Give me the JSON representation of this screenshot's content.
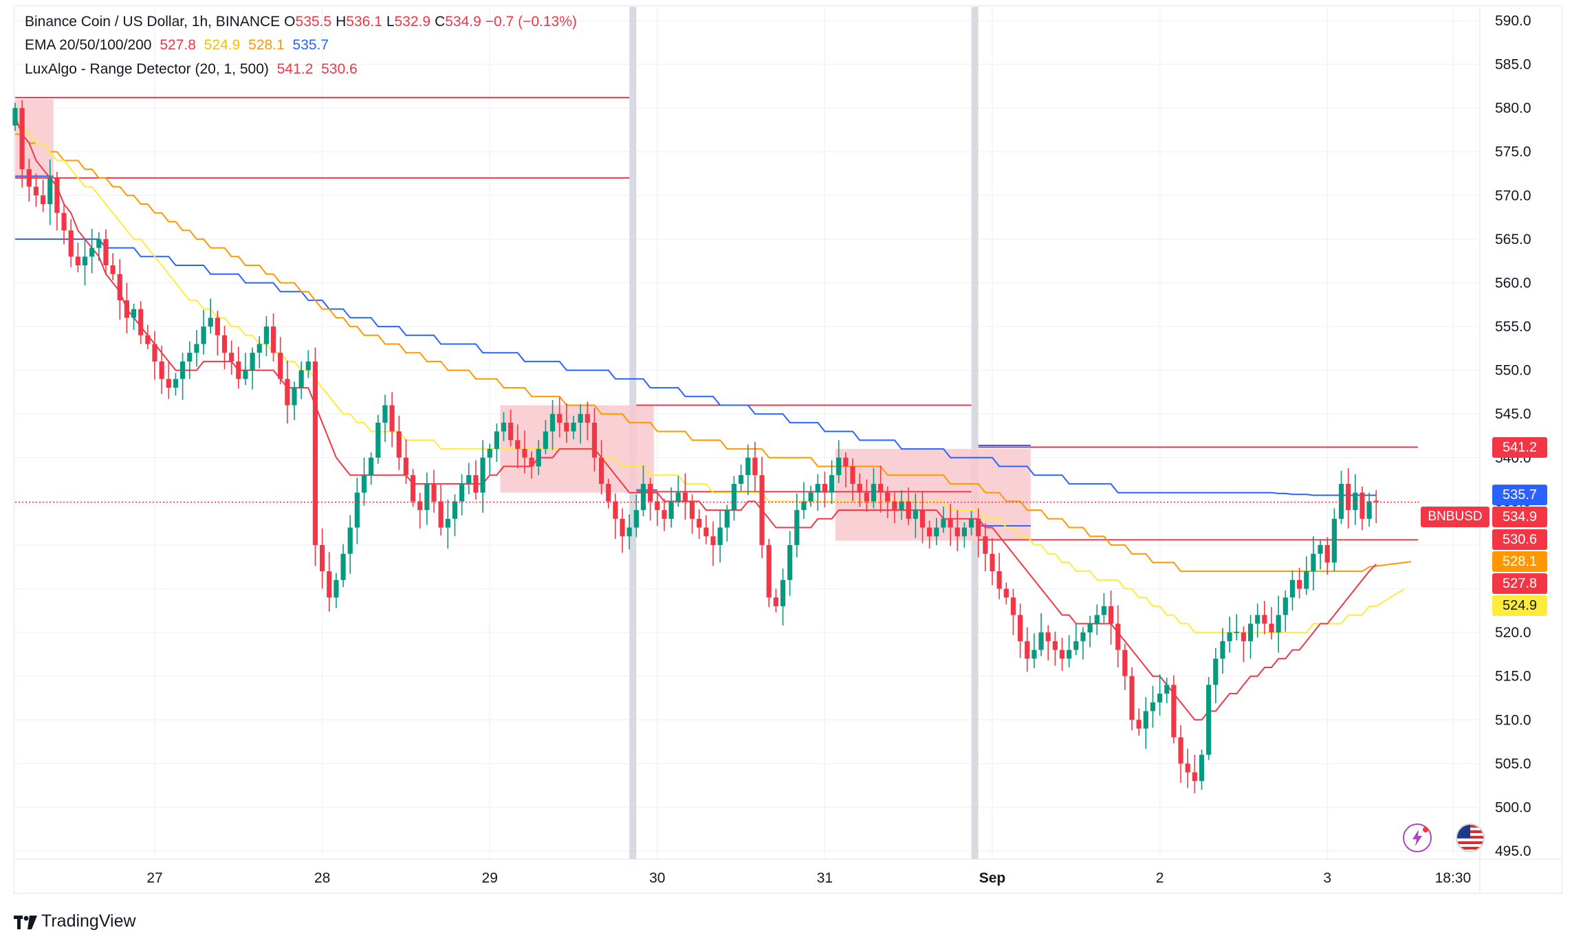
{
  "legend": {
    "line1": {
      "symbol": "Binance Coin / US Dollar, 1h, BINANCE",
      "o_label": "O",
      "o": "535.5",
      "h_label": "H",
      "h": "536.1",
      "l_label": "L",
      "l": "532.9",
      "c_label": "C",
      "c": "534.9",
      "change": "−0.7 (−0.13%)"
    },
    "line2": {
      "name": "EMA 20/50/100/200",
      "v20": "527.8",
      "v50": "524.9",
      "v100": "528.1",
      "v200": "535.7"
    },
    "line3": {
      "name": "LuxAlgo - Range Detector (20, 1, 500)",
      "upper": "541.2",
      "lower": "530.6"
    }
  },
  "price_tags": {
    "range_upper": "541.2",
    "ema200": "535.7",
    "symbol": "BNBUSD",
    "last": "534.9",
    "range_lower": "530.6",
    "ema100": "528.1",
    "ema20": "527.8",
    "ema50": "524.9"
  },
  "colors": {
    "up": "#089981",
    "down": "#f23645",
    "ema20": "#f23645",
    "ema50": "#ffeb3b",
    "ema100": "#ff9800",
    "ema200": "#2962ff",
    "range_fill": "#f8c8cc"
  },
  "branding": {
    "logo_text": "TradingView"
  },
  "icons": [
    "lightning-icon",
    "us-flag-icon"
  ],
  "chart_data": {
    "type": "candlestick",
    "ylim": [
      495,
      590
    ],
    "y_ticks": [
      590,
      585,
      580,
      575,
      570,
      565,
      560,
      555,
      550,
      545,
      540,
      535,
      530,
      525,
      520,
      515,
      510,
      505,
      500,
      495
    ],
    "x_ticks": [
      {
        "label": "27",
        "bar": 20
      },
      {
        "label": "28",
        "bar": 44
      },
      {
        "label": "29",
        "bar": 68
      },
      {
        "label": "30",
        "bar": 92
      },
      {
        "label": "31",
        "bar": 116
      },
      {
        "label": "Sep",
        "bar": 140
      },
      {
        "label": "2",
        "bar": 164
      },
      {
        "label": "3",
        "bar": 188
      },
      {
        "label": "18:30",
        "bar": 206
      }
    ],
    "session_breaks": [
      88.5,
      137.5
    ],
    "last_price": 534.9,
    "closes": [
      580,
      573,
      571,
      570,
      569,
      572,
      568,
      566,
      563,
      562,
      563,
      564,
      565,
      562,
      561,
      558,
      556,
      557,
      554,
      553,
      551,
      549,
      548,
      549,
      551,
      552,
      553,
      555,
      556,
      554,
      552,
      551,
      549,
      550,
      552,
      553,
      555,
      552,
      549,
      546,
      548,
      550,
      551,
      530,
      527,
      524,
      526,
      529,
      532,
      536,
      538,
      540,
      544,
      546,
      543,
      540,
      538,
      535,
      534,
      537,
      535,
      532,
      533,
      535,
      537,
      538,
      536,
      540,
      541,
      543,
      544,
      542,
      541,
      540,
      539,
      541,
      543,
      545,
      544,
      543,
      544,
      545,
      544,
      540,
      537,
      535,
      533,
      531,
      532,
      534,
      537,
      535,
      534,
      533,
      535,
      536,
      535,
      533,
      532,
      531,
      530,
      532,
      534,
      537,
      538,
      540,
      538,
      530,
      524,
      523,
      526,
      530,
      534,
      535,
      536,
      537,
      536,
      538,
      540,
      539,
      537,
      536,
      535,
      537,
      536,
      535,
      534,
      535,
      533,
      534,
      532,
      531,
      532,
      533,
      532,
      531,
      532,
      533,
      531,
      529,
      527,
      525,
      524,
      522,
      519,
      517,
      518,
      520,
      519,
      518,
      517,
      518,
      519,
      520,
      521,
      522,
      523,
      521,
      518,
      515,
      510,
      509,
      511,
      512,
      513,
      514,
      508,
      505,
      504,
      503,
      506,
      514,
      517,
      519,
      520,
      520,
      519,
      521,
      522,
      521,
      520,
      522,
      524,
      526,
      525,
      527,
      529,
      530,
      528,
      533,
      537,
      534,
      536,
      533,
      535,
      534.9
    ],
    "ema20": [
      579,
      577,
      576,
      574,
      573,
      572,
      571,
      569,
      568,
      566,
      565,
      564,
      563,
      561,
      560,
      559,
      557,
      556,
      555,
      554,
      553,
      552,
      551,
      550,
      550,
      550,
      550,
      551,
      551,
      551,
      551,
      551,
      550,
      550,
      550,
      550,
      550,
      550,
      549,
      548,
      548,
      548,
      548,
      546,
      544,
      542,
      540,
      539,
      538,
      538,
      538,
      538,
      538,
      538,
      538,
      538,
      538,
      537,
      537,
      537,
      537,
      537,
      537,
      537,
      537,
      537,
      537,
      537,
      538,
      538,
      539,
      539,
      539,
      539,
      539,
      540,
      540,
      540,
      541,
      541,
      541,
      541,
      541,
      541,
      540,
      539,
      538,
      537,
      536,
      536,
      536,
      536,
      536,
      535,
      535,
      535,
      535,
      535,
      535,
      534,
      534,
      534,
      534,
      534,
      534,
      535,
      535,
      534,
      533,
      532,
      532,
      532,
      532,
      532,
      532,
      533,
      533,
      533,
      534,
      534,
      534,
      534,
      534,
      534,
      534,
      534,
      534,
      534,
      534,
      534,
      534,
      534,
      534,
      533,
      533,
      533,
      533,
      533,
      533,
      532,
      532,
      531,
      530,
      529,
      528,
      527,
      526,
      525,
      524,
      523,
      522,
      522,
      521,
      521,
      521,
      521,
      521,
      521,
      520,
      519,
      518,
      517,
      516,
      515,
      515,
      514,
      513,
      512,
      511,
      510,
      510,
      511,
      511,
      512,
      513,
      513,
      514,
      515,
      515,
      516,
      516,
      517,
      517,
      518,
      518,
      519,
      520,
      521,
      521,
      522,
      523,
      524,
      525,
      526,
      527,
      527.8
    ],
    "ema50": [
      578,
      578,
      577,
      576,
      576,
      575,
      574,
      574,
      573,
      572,
      571,
      571,
      570,
      569,
      568,
      567,
      566,
      565,
      565,
      564,
      563,
      562,
      561,
      560,
      559,
      558,
      558,
      557,
      557,
      556,
      556,
      555,
      555,
      554,
      554,
      553,
      553,
      552,
      552,
      551,
      551,
      550,
      550,
      549,
      548,
      547,
      546,
      545,
      545,
      544,
      544,
      543,
      543,
      543,
      543,
      543,
      542,
      542,
      542,
      542,
      542,
      541,
      541,
      541,
      541,
      541,
      541,
      541,
      541,
      541,
      541,
      541,
      541,
      541,
      541,
      541,
      541,
      541,
      541,
      541,
      541,
      541,
      541,
      541,
      540,
      540,
      540,
      539,
      539,
      539,
      539,
      538,
      538,
      538,
      538,
      538,
      537,
      537,
      537,
      537,
      536,
      536,
      536,
      536,
      536,
      536,
      536,
      536,
      535,
      535,
      535,
      535,
      535,
      535,
      535,
      535,
      535,
      535,
      535,
      535,
      535,
      535,
      535,
      535,
      535,
      535,
      535,
      535,
      535,
      535,
      535,
      535,
      535,
      535,
      534,
      534,
      534,
      534,
      534,
      533,
      533,
      533,
      532,
      532,
      531,
      531,
      530,
      530,
      529,
      529,
      528,
      528,
      527,
      527,
      527,
      526,
      526,
      526,
      526,
      525,
      525,
      524,
      524,
      523,
      523,
      522,
      522,
      521,
      521,
      520,
      520,
      520,
      520,
      520,
      520,
      520,
      520,
      520,
      520,
      520,
      520,
      520,
      520,
      520,
      520,
      520,
      521,
      521,
      521,
      521,
      521,
      522,
      522,
      522,
      523,
      523,
      523.5,
      524,
      524.5,
      524.9
    ],
    "ema100": [
      577,
      577,
      576,
      576,
      576,
      575,
      575,
      574,
      574,
      574,
      573,
      573,
      572,
      572,
      571,
      571,
      570,
      570,
      569,
      569,
      568,
      568,
      567,
      567,
      566,
      566,
      565,
      565,
      564,
      564,
      564,
      563,
      563,
      562,
      562,
      562,
      561,
      561,
      560,
      560,
      560,
      559,
      559,
      558,
      557,
      557,
      556,
      556,
      555,
      555,
      554,
      554,
      554,
      553,
      553,
      553,
      552,
      552,
      552,
      551,
      551,
      551,
      550,
      550,
      550,
      550,
      549,
      549,
      549,
      549,
      548,
      548,
      548,
      548,
      547,
      547,
      547,
      547,
      547,
      546,
      546,
      546,
      546,
      546,
      545,
      545,
      545,
      545,
      544,
      544,
      544,
      544,
      543,
      543,
      543,
      543,
      543,
      542,
      542,
      542,
      542,
      542,
      541,
      541,
      541,
      541,
      541,
      541,
      540,
      540,
      540,
      540,
      540,
      540,
      540,
      539,
      539,
      539,
      539,
      539,
      539,
      539,
      539,
      539,
      539,
      538,
      538,
      538,
      538,
      538,
      538,
      538,
      538,
      538,
      537,
      537,
      537,
      537,
      537,
      536,
      536,
      536,
      535,
      535,
      535,
      534,
      534,
      534,
      533,
      533,
      533,
      532,
      532,
      532,
      531,
      531,
      531,
      530,
      530,
      530,
      529,
      529,
      529,
      528,
      528,
      528,
      528,
      527,
      527,
      527,
      527,
      527,
      527,
      527,
      527,
      527,
      527,
      527,
      527,
      527,
      527,
      527,
      527,
      527,
      527,
      527,
      527,
      527,
      527,
      527,
      527,
      527,
      527,
      527,
      527.5,
      527.6,
      527.7,
      527.8,
      527.9,
      528,
      528.1
    ],
    "ema200": [
      565,
      565,
      565,
      565,
      565,
      565,
      565,
      565,
      565,
      565,
      565,
      565,
      565,
      564,
      564,
      564,
      564,
      564,
      563,
      563,
      563,
      563,
      563,
      562,
      562,
      562,
      562,
      562,
      561,
      561,
      561,
      561,
      561,
      560,
      560,
      560,
      560,
      560,
      559,
      559,
      559,
      559,
      558,
      558,
      558,
      557,
      557,
      557,
      556,
      556,
      556,
      556,
      555,
      555,
      555,
      555,
      554,
      554,
      554,
      554,
      554,
      553,
      553,
      553,
      553,
      553,
      553,
      552,
      552,
      552,
      552,
      552,
      552,
      551,
      551,
      551,
      551,
      551,
      551,
      550,
      550,
      550,
      550,
      550,
      550,
      550,
      549,
      549,
      549,
      549,
      549,
      548,
      548,
      548,
      548,
      548,
      547,
      547,
      547,
      547,
      547,
      546,
      546,
      546,
      546,
      546,
      545,
      545,
      545,
      545,
      545,
      544,
      544,
      544,
      544,
      544,
      543,
      543,
      543,
      543,
      543,
      542,
      542,
      542,
      542,
      542,
      542,
      541,
      541,
      541,
      541,
      541,
      541,
      541,
      540,
      540,
      540,
      540,
      540,
      540,
      540,
      539,
      539,
      539,
      539,
      539,
      538,
      538,
      538,
      538,
      538,
      537,
      537,
      537,
      537,
      537,
      537,
      537,
      536,
      536,
      536,
      536,
      536,
      536,
      536,
      536,
      536,
      536,
      536,
      536,
      536,
      536,
      536,
      536,
      536,
      536,
      536,
      536,
      536,
      536,
      536,
      535.9,
      535.9,
      535.8,
      535.8,
      535.8,
      535.7,
      535.7,
      535.7,
      535.7,
      535.7,
      535.7,
      535.7,
      535.7,
      535.7,
      535.7
    ],
    "range_boxes": [
      {
        "x0": 0,
        "x1": 5.5,
        "top": 581,
        "bottom": 572
      },
      {
        "x0": 69.5,
        "x1": 91.5,
        "top": 546,
        "bottom": 536
      },
      {
        "x0": 117.5,
        "x1": 138.5,
        "top": 541,
        "bottom": 530.5
      },
      {
        "x0": 138.5,
        "x1": 145.5,
        "top": 541,
        "bottom": 530.5
      }
    ],
    "range_lines": [
      {
        "x0": 0,
        "x1": 88,
        "y": 581.2,
        "color": "#f23645"
      },
      {
        "x0": 0,
        "x1": 88,
        "y": 572,
        "color": "#f23645"
      },
      {
        "x0": 0,
        "x1": 5.5,
        "y": 572.2,
        "color": "#2962ff"
      },
      {
        "x0": 89,
        "x1": 137,
        "y": 546,
        "color": "#f23645"
      },
      {
        "x0": 89,
        "x1": 137,
        "y": 536.1,
        "color": "#f23645"
      },
      {
        "x0": 89,
        "x1": 92,
        "y": 536.3,
        "color": "#2962ff"
      },
      {
        "x0": 138,
        "x1": 201,
        "y": 541.2,
        "color": "#f23645"
      },
      {
        "x0": 138,
        "x1": 201,
        "y": 530.6,
        "color": "#f23645"
      },
      {
        "x0": 138,
        "x1": 145.5,
        "y": 541.4,
        "color": "#2962ff"
      },
      {
        "x0": 138,
        "x1": 145.5,
        "y": 532.2,
        "color": "#2962ff"
      }
    ]
  }
}
